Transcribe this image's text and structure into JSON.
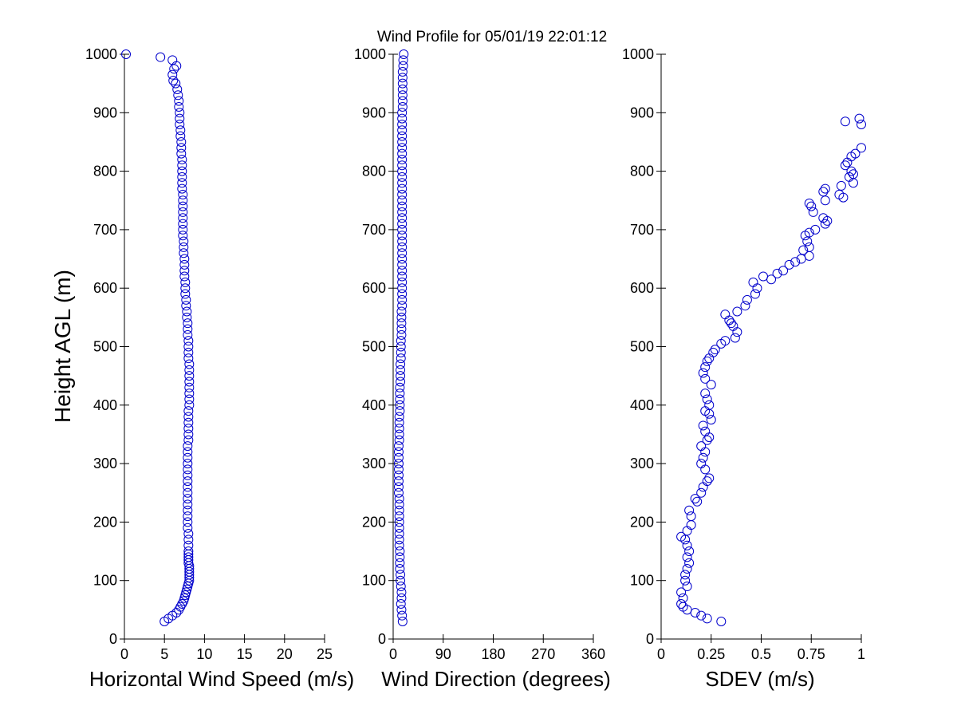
{
  "title": "Wind Profile for  05/01/19 22:01:12",
  "marker_color": "#0000cc",
  "chart_data": [
    {
      "type": "scatter",
      "xlabel": "Horizontal Wind Speed (m/s)",
      "ylabel": "Height AGL (m)",
      "xlim": [
        0,
        25
      ],
      "ylim": [
        0,
        1000
      ],
      "xticks": [
        0,
        5,
        10,
        15,
        20,
        25
      ],
      "yticks": [
        0,
        100,
        200,
        300,
        400,
        500,
        600,
        700,
        800,
        900,
        1000
      ],
      "points": [
        [
          5.0,
          30
        ],
        [
          5.5,
          35
        ],
        [
          6.0,
          40
        ],
        [
          6.5,
          45
        ],
        [
          6.8,
          50
        ],
        [
          7.0,
          55
        ],
        [
          7.2,
          60
        ],
        [
          7.4,
          65
        ],
        [
          7.5,
          70
        ],
        [
          7.6,
          75
        ],
        [
          7.7,
          80
        ],
        [
          7.8,
          85
        ],
        [
          7.9,
          90
        ],
        [
          8.0,
          95
        ],
        [
          8.1,
          100
        ],
        [
          8.1,
          105
        ],
        [
          8.1,
          110
        ],
        [
          8.1,
          115
        ],
        [
          8.1,
          120
        ],
        [
          8.1,
          125
        ],
        [
          8.0,
          130
        ],
        [
          8.0,
          135
        ],
        [
          8.0,
          140
        ],
        [
          8.0,
          145
        ],
        [
          8.0,
          150
        ],
        [
          8.0,
          160
        ],
        [
          8.0,
          170
        ],
        [
          8.0,
          180
        ],
        [
          7.9,
          190
        ],
        [
          7.9,
          200
        ],
        [
          7.9,
          210
        ],
        [
          7.9,
          220
        ],
        [
          7.9,
          230
        ],
        [
          7.9,
          240
        ],
        [
          7.9,
          250
        ],
        [
          7.9,
          260
        ],
        [
          7.9,
          270
        ],
        [
          7.9,
          280
        ],
        [
          7.9,
          290
        ],
        [
          7.9,
          300
        ],
        [
          7.9,
          310
        ],
        [
          7.9,
          320
        ],
        [
          7.9,
          330
        ],
        [
          8.0,
          340
        ],
        [
          8.0,
          350
        ],
        [
          8.0,
          360
        ],
        [
          8.0,
          370
        ],
        [
          8.0,
          380
        ],
        [
          8.0,
          390
        ],
        [
          8.1,
          400
        ],
        [
          8.1,
          410
        ],
        [
          8.1,
          420
        ],
        [
          8.1,
          430
        ],
        [
          8.1,
          440
        ],
        [
          8.1,
          450
        ],
        [
          8.1,
          460
        ],
        [
          8.1,
          470
        ],
        [
          8.0,
          480
        ],
        [
          8.0,
          490
        ],
        [
          8.0,
          500
        ],
        [
          8.0,
          510
        ],
        [
          7.9,
          520
        ],
        [
          7.9,
          530
        ],
        [
          7.9,
          540
        ],
        [
          7.8,
          550
        ],
        [
          7.8,
          560
        ],
        [
          7.7,
          570
        ],
        [
          7.7,
          580
        ],
        [
          7.6,
          590
        ],
        [
          7.6,
          600
        ],
        [
          7.6,
          610
        ],
        [
          7.5,
          620
        ],
        [
          7.5,
          630
        ],
        [
          7.5,
          640
        ],
        [
          7.5,
          650
        ],
        [
          7.4,
          660
        ],
        [
          7.4,
          670
        ],
        [
          7.4,
          680
        ],
        [
          7.3,
          690
        ],
        [
          7.3,
          700
        ],
        [
          7.3,
          710
        ],
        [
          7.3,
          720
        ],
        [
          7.3,
          730
        ],
        [
          7.3,
          740
        ],
        [
          7.3,
          750
        ],
        [
          7.3,
          760
        ],
        [
          7.2,
          770
        ],
        [
          7.2,
          780
        ],
        [
          7.2,
          790
        ],
        [
          7.2,
          800
        ],
        [
          7.2,
          810
        ],
        [
          7.2,
          820
        ],
        [
          7.1,
          830
        ],
        [
          7.1,
          840
        ],
        [
          7.1,
          850
        ],
        [
          7.0,
          860
        ],
        [
          7.0,
          870
        ],
        [
          6.9,
          880
        ],
        [
          6.9,
          890
        ],
        [
          6.9,
          900
        ],
        [
          6.8,
          910
        ],
        [
          6.8,
          920
        ],
        [
          6.7,
          930
        ],
        [
          6.6,
          940
        ],
        [
          6.4,
          950
        ],
        [
          6.1,
          955
        ],
        [
          6.0,
          965
        ],
        [
          6.2,
          975
        ],
        [
          6.5,
          980
        ],
        [
          6.0,
          990
        ],
        [
          4.5,
          995
        ],
        [
          0.2,
          1000
        ]
      ]
    },
    {
      "type": "scatter",
      "xlabel": "Wind Direction (degrees)",
      "ylabel": "",
      "xlim": [
        0,
        360
      ],
      "ylim": [
        0,
        1000
      ],
      "xticks": [
        0,
        90,
        180,
        270,
        360
      ],
      "yticks": [
        0,
        100,
        200,
        300,
        400,
        500,
        600,
        700,
        800,
        900,
        1000
      ],
      "points": [
        [
          17,
          30
        ],
        [
          16,
          40
        ],
        [
          15,
          50
        ],
        [
          14,
          60
        ],
        [
          15,
          70
        ],
        [
          15,
          80
        ],
        [
          14,
          90
        ],
        [
          13,
          100
        ],
        [
          13,
          110
        ],
        [
          12,
          120
        ],
        [
          12,
          130
        ],
        [
          12,
          140
        ],
        [
          12,
          150
        ],
        [
          11,
          160
        ],
        [
          11,
          170
        ],
        [
          11,
          180
        ],
        [
          11,
          190
        ],
        [
          11,
          200
        ],
        [
          11,
          210
        ],
        [
          11,
          220
        ],
        [
          11,
          230
        ],
        [
          11,
          240
        ],
        [
          10,
          250
        ],
        [
          10,
          260
        ],
        [
          10,
          270
        ],
        [
          10,
          280
        ],
        [
          10,
          290
        ],
        [
          10,
          300
        ],
        [
          10,
          310
        ],
        [
          10,
          320
        ],
        [
          10,
          330
        ],
        [
          11,
          340
        ],
        [
          11,
          350
        ],
        [
          11,
          360
        ],
        [
          11,
          370
        ],
        [
          11,
          380
        ],
        [
          12,
          390
        ],
        [
          12,
          400
        ],
        [
          12,
          410
        ],
        [
          12,
          420
        ],
        [
          12,
          430
        ],
        [
          13,
          440
        ],
        [
          13,
          450
        ],
        [
          13,
          460
        ],
        [
          13,
          470
        ],
        [
          14,
          480
        ],
        [
          14,
          490
        ],
        [
          14,
          500
        ],
        [
          14,
          510
        ],
        [
          15,
          520
        ],
        [
          15,
          530
        ],
        [
          15,
          540
        ],
        [
          15,
          550
        ],
        [
          15,
          560
        ],
        [
          16,
          570
        ],
        [
          16,
          580
        ],
        [
          16,
          590
        ],
        [
          16,
          600
        ],
        [
          16,
          610
        ],
        [
          16,
          620
        ],
        [
          16,
          630
        ],
        [
          16,
          640
        ],
        [
          16,
          650
        ],
        [
          16,
          660
        ],
        [
          16,
          670
        ],
        [
          16,
          680
        ],
        [
          16,
          690
        ],
        [
          16,
          700
        ],
        [
          16,
          710
        ],
        [
          16,
          720
        ],
        [
          16,
          730
        ],
        [
          16,
          740
        ],
        [
          16,
          750
        ],
        [
          16,
          760
        ],
        [
          16,
          770
        ],
        [
          16,
          780
        ],
        [
          16,
          790
        ],
        [
          16,
          800
        ],
        [
          16,
          810
        ],
        [
          16,
          820
        ],
        [
          16,
          830
        ],
        [
          16,
          840
        ],
        [
          16,
          850
        ],
        [
          16,
          860
        ],
        [
          16,
          870
        ],
        [
          16,
          880
        ],
        [
          16,
          890
        ],
        [
          16,
          900
        ],
        [
          17,
          910
        ],
        [
          17,
          920
        ],
        [
          17,
          930
        ],
        [
          17,
          940
        ],
        [
          17,
          950
        ],
        [
          17,
          960
        ],
        [
          17,
          970
        ],
        [
          18,
          980
        ],
        [
          18,
          990
        ],
        [
          19,
          1000
        ]
      ]
    },
    {
      "type": "scatter",
      "xlabel": "SDEV  (m/s)",
      "ylabel": "",
      "xlim": [
        0,
        1
      ],
      "ylim": [
        0,
        1000
      ],
      "xticks": [
        0,
        0.25,
        0.5,
        0.75,
        1
      ],
      "yticks": [
        0,
        100,
        200,
        300,
        400,
        500,
        600,
        700,
        800,
        900,
        1000
      ],
      "points": [
        [
          0.3,
          30
        ],
        [
          0.23,
          35
        ],
        [
          0.2,
          40
        ],
        [
          0.17,
          45
        ],
        [
          0.13,
          50
        ],
        [
          0.11,
          55
        ],
        [
          0.1,
          60
        ],
        [
          0.11,
          70
        ],
        [
          0.1,
          80
        ],
        [
          0.13,
          90
        ],
        [
          0.12,
          100
        ],
        [
          0.12,
          110
        ],
        [
          0.13,
          120
        ],
        [
          0.14,
          130
        ],
        [
          0.13,
          140
        ],
        [
          0.14,
          150
        ],
        [
          0.13,
          160
        ],
        [
          0.12,
          170
        ],
        [
          0.1,
          175
        ],
        [
          0.13,
          185
        ],
        [
          0.15,
          195
        ],
        [
          0.15,
          210
        ],
        [
          0.14,
          220
        ],
        [
          0.18,
          235
        ],
        [
          0.17,
          240
        ],
        [
          0.2,
          250
        ],
        [
          0.21,
          260
        ],
        [
          0.23,
          270
        ],
        [
          0.24,
          275
        ],
        [
          0.22,
          290
        ],
        [
          0.2,
          300
        ],
        [
          0.21,
          310
        ],
        [
          0.22,
          320
        ],
        [
          0.2,
          330
        ],
        [
          0.23,
          340
        ],
        [
          0.24,
          345
        ],
        [
          0.22,
          355
        ],
        [
          0.21,
          365
        ],
        [
          0.25,
          375
        ],
        [
          0.24,
          385
        ],
        [
          0.22,
          390
        ],
        [
          0.24,
          400
        ],
        [
          0.23,
          410
        ],
        [
          0.22,
          420
        ],
        [
          0.25,
          435
        ],
        [
          0.22,
          445
        ],
        [
          0.21,
          455
        ],
        [
          0.22,
          465
        ],
        [
          0.23,
          475
        ],
        [
          0.24,
          480
        ],
        [
          0.26,
          490
        ],
        [
          0.27,
          495
        ],
        [
          0.3,
          505
        ],
        [
          0.32,
          510
        ],
        [
          0.37,
          515
        ],
        [
          0.38,
          525
        ],
        [
          0.36,
          535
        ],
        [
          0.35,
          540
        ],
        [
          0.34,
          545
        ],
        [
          0.32,
          555
        ],
        [
          0.38,
          560
        ],
        [
          0.42,
          570
        ],
        [
          0.43,
          580
        ],
        [
          0.47,
          590
        ],
        [
          0.48,
          600
        ],
        [
          0.46,
          610
        ],
        [
          0.51,
          620
        ],
        [
          0.55,
          615
        ],
        [
          0.58,
          625
        ],
        [
          0.61,
          630
        ],
        [
          0.64,
          640
        ],
        [
          0.67,
          645
        ],
        [
          0.7,
          650
        ],
        [
          0.74,
          655
        ],
        [
          0.71,
          665
        ],
        [
          0.74,
          670
        ],
        [
          0.73,
          680
        ],
        [
          0.72,
          690
        ],
        [
          0.74,
          695
        ],
        [
          0.77,
          700
        ],
        [
          0.82,
          710
        ],
        [
          0.83,
          715
        ],
        [
          0.81,
          720
        ],
        [
          0.76,
          730
        ],
        [
          0.75,
          740
        ],
        [
          0.74,
          745
        ],
        [
          0.82,
          750
        ],
        [
          0.91,
          755
        ],
        [
          0.89,
          760
        ],
        [
          0.81,
          765
        ],
        [
          0.82,
          770
        ],
        [
          0.9,
          775
        ],
        [
          0.96,
          780
        ],
        [
          0.94,
          790
        ],
        [
          0.96,
          795
        ],
        [
          0.95,
          800
        ],
        [
          0.92,
          810
        ],
        [
          0.93,
          815
        ],
        [
          0.95,
          825
        ],
        [
          0.97,
          830
        ],
        [
          1.0,
          840
        ],
        [
          0.92,
          885
        ],
        [
          0.99,
          890
        ],
        [
          1.0,
          880
        ]
      ]
    }
  ]
}
